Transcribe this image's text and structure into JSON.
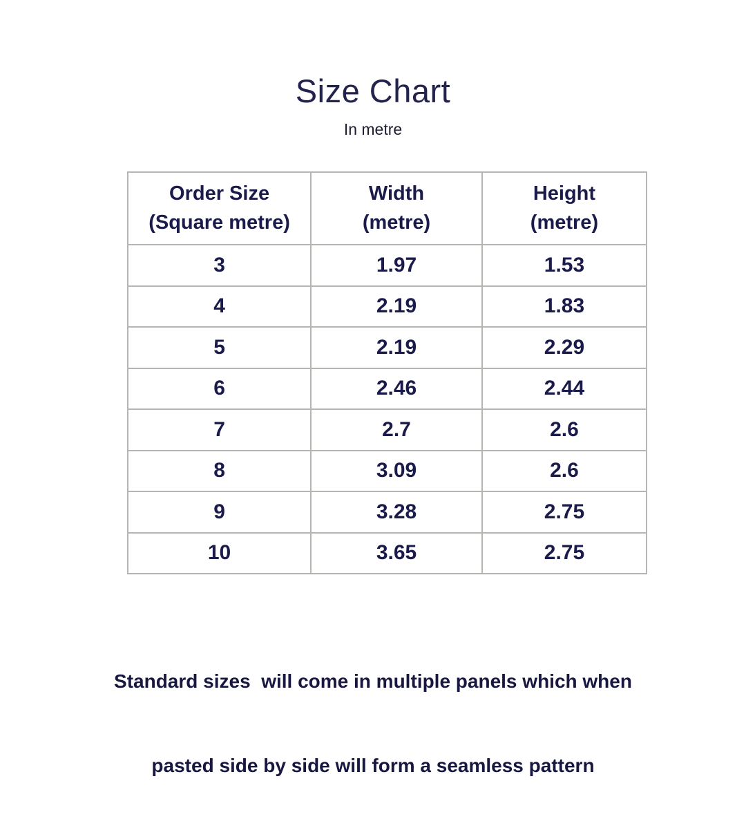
{
  "page": {
    "title": "Size Chart",
    "subtitle": "In metre"
  },
  "table": {
    "columns": [
      {
        "title": "Order Size",
        "unit": "(Square metre)"
      },
      {
        "title": "Width",
        "unit": "(metre)"
      },
      {
        "title": "Height",
        "unit": "(metre)"
      }
    ],
    "rows": [
      [
        "3",
        "1.97",
        "1.53"
      ],
      [
        "4",
        "2.19",
        "1.83"
      ],
      [
        "5",
        "2.19",
        "2.29"
      ],
      [
        "6",
        "2.46",
        "2.44"
      ],
      [
        "7",
        "2.7",
        "2.6"
      ],
      [
        "8",
        "3.09",
        "2.6"
      ],
      [
        "9",
        "3.28",
        "2.75"
      ],
      [
        "10",
        "3.65",
        "2.75"
      ]
    ]
  },
  "footer": {
    "line1": "Standard sizes  will come in multiple panels which when",
    "line2": "pasted side by side will form a seamless pattern"
  },
  "colors": {
    "title_text": "#23234e",
    "subtitle_text": "#1e1e32",
    "table_text": "#1b1b4b",
    "footer_text": "#171740",
    "table_border": "#b5b5b1",
    "background": "#ffffff"
  },
  "chart_data": {
    "type": "table",
    "title": "Size Chart",
    "subtitle": "In metre",
    "columns": [
      "Order Size (Square metre)",
      "Width (metre)",
      "Height (metre)"
    ],
    "rows": [
      [
        3,
        1.97,
        1.53
      ],
      [
        4,
        2.19,
        1.83
      ],
      [
        5,
        2.19,
        2.29
      ],
      [
        6,
        2.46,
        2.44
      ],
      [
        7,
        2.7,
        2.6
      ],
      [
        8,
        3.09,
        2.6
      ],
      [
        9,
        3.28,
        2.75
      ],
      [
        10,
        3.65,
        2.75
      ]
    ],
    "note": "Standard sizes  will come in multiple panels which when pasted side by side will form a seamless pattern"
  }
}
